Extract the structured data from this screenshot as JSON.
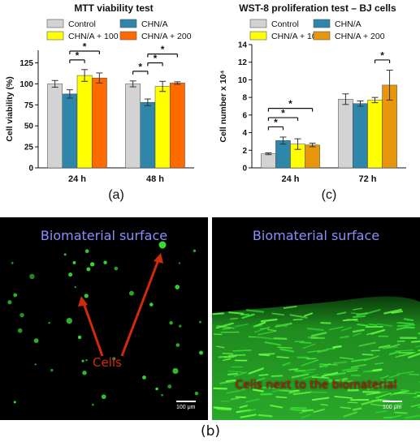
{
  "chart_data": [
    {
      "type": "bar",
      "title": "MTT viability test",
      "ylabel": "Cell viability (%)",
      "xlabel": "",
      "ylim": [
        0,
        140
      ],
      "yticks": [
        0,
        25,
        50,
        75,
        100,
        125
      ],
      "categories": [
        "24 h",
        "48 h"
      ],
      "legend_position": "top",
      "series": [
        {
          "name": "Control",
          "color": "#d3d3d3",
          "values": [
            100,
            100
          ],
          "errors": [
            4,
            3.5
          ]
        },
        {
          "name": "CHN/A",
          "color": "#2e86ab",
          "values": [
            88,
            78
          ],
          "errors": [
            5,
            4
          ]
        },
        {
          "name": "CHN/A + 100",
          "color": "#ffff00",
          "values": [
            110,
            97
          ],
          "errors": [
            7,
            6
          ]
        },
        {
          "name": "CHN/A + 200",
          "color": "#ff6a00",
          "values": [
            107,
            101
          ],
          "errors": [
            6,
            1.5
          ]
        }
      ],
      "significance": [
        {
          "category": 0,
          "from": 1,
          "to": 2,
          "label": "*"
        },
        {
          "category": 0,
          "from": 1,
          "to": 3,
          "label": "*"
        },
        {
          "category": 1,
          "from": 0,
          "to": 1,
          "label": "*"
        },
        {
          "category": 1,
          "from": 1,
          "to": 2,
          "label": "*"
        },
        {
          "category": 1,
          "from": 1,
          "to": 3,
          "label": "*"
        }
      ],
      "panel_label": "(a)"
    },
    {
      "type": "bar",
      "title": "WST-8 proliferation test – BJ cells",
      "ylabel": "Cell number x 10⁴",
      "xlabel": "",
      "ylim": [
        0,
        14
      ],
      "yticks": [
        0,
        2,
        4,
        6,
        8,
        10,
        12,
        14
      ],
      "categories": [
        "24 h",
        "72 h"
      ],
      "legend_position": "top",
      "series": [
        {
          "name": "Control",
          "color": "#d3d3d3",
          "values": [
            1.6,
            7.8
          ],
          "errors": [
            0.1,
            0.6
          ]
        },
        {
          "name": "CHN/A",
          "color": "#2e86ab",
          "values": [
            3.1,
            7.3
          ],
          "errors": [
            0.4,
            0.3
          ]
        },
        {
          "name": "CHN/A + 100",
          "color": "#ffff00",
          "values": [
            2.7,
            7.7
          ],
          "errors": [
            0.6,
            0.3
          ]
        },
        {
          "name": "CHN/A + 200",
          "color": "#e8960c",
          "values": [
            2.6,
            9.4
          ],
          "errors": [
            0.2,
            1.7
          ]
        }
      ],
      "significance": [
        {
          "category": 0,
          "from": 0,
          "to": 1,
          "label": "*"
        },
        {
          "category": 0,
          "from": 0,
          "to": 2,
          "label": "*"
        },
        {
          "category": 0,
          "from": 0,
          "to": 3,
          "label": "*"
        },
        {
          "category": 1,
          "from": 2,
          "to": 3,
          "label": "*"
        }
      ],
      "panel_label": "(c)"
    }
  ],
  "micrographs": {
    "left": {
      "title": "Biomaterial surface",
      "annotation": "Cells",
      "scale": "100 μm"
    },
    "right": {
      "title": "Biomaterial surface",
      "annotation": "Cells next to the biomaterial",
      "scale": "100 μm"
    },
    "panel_label": "(b)",
    "cell_color": "#33dd33",
    "annotation_color": "#d02a0a",
    "title_color": "#8c8cff"
  }
}
